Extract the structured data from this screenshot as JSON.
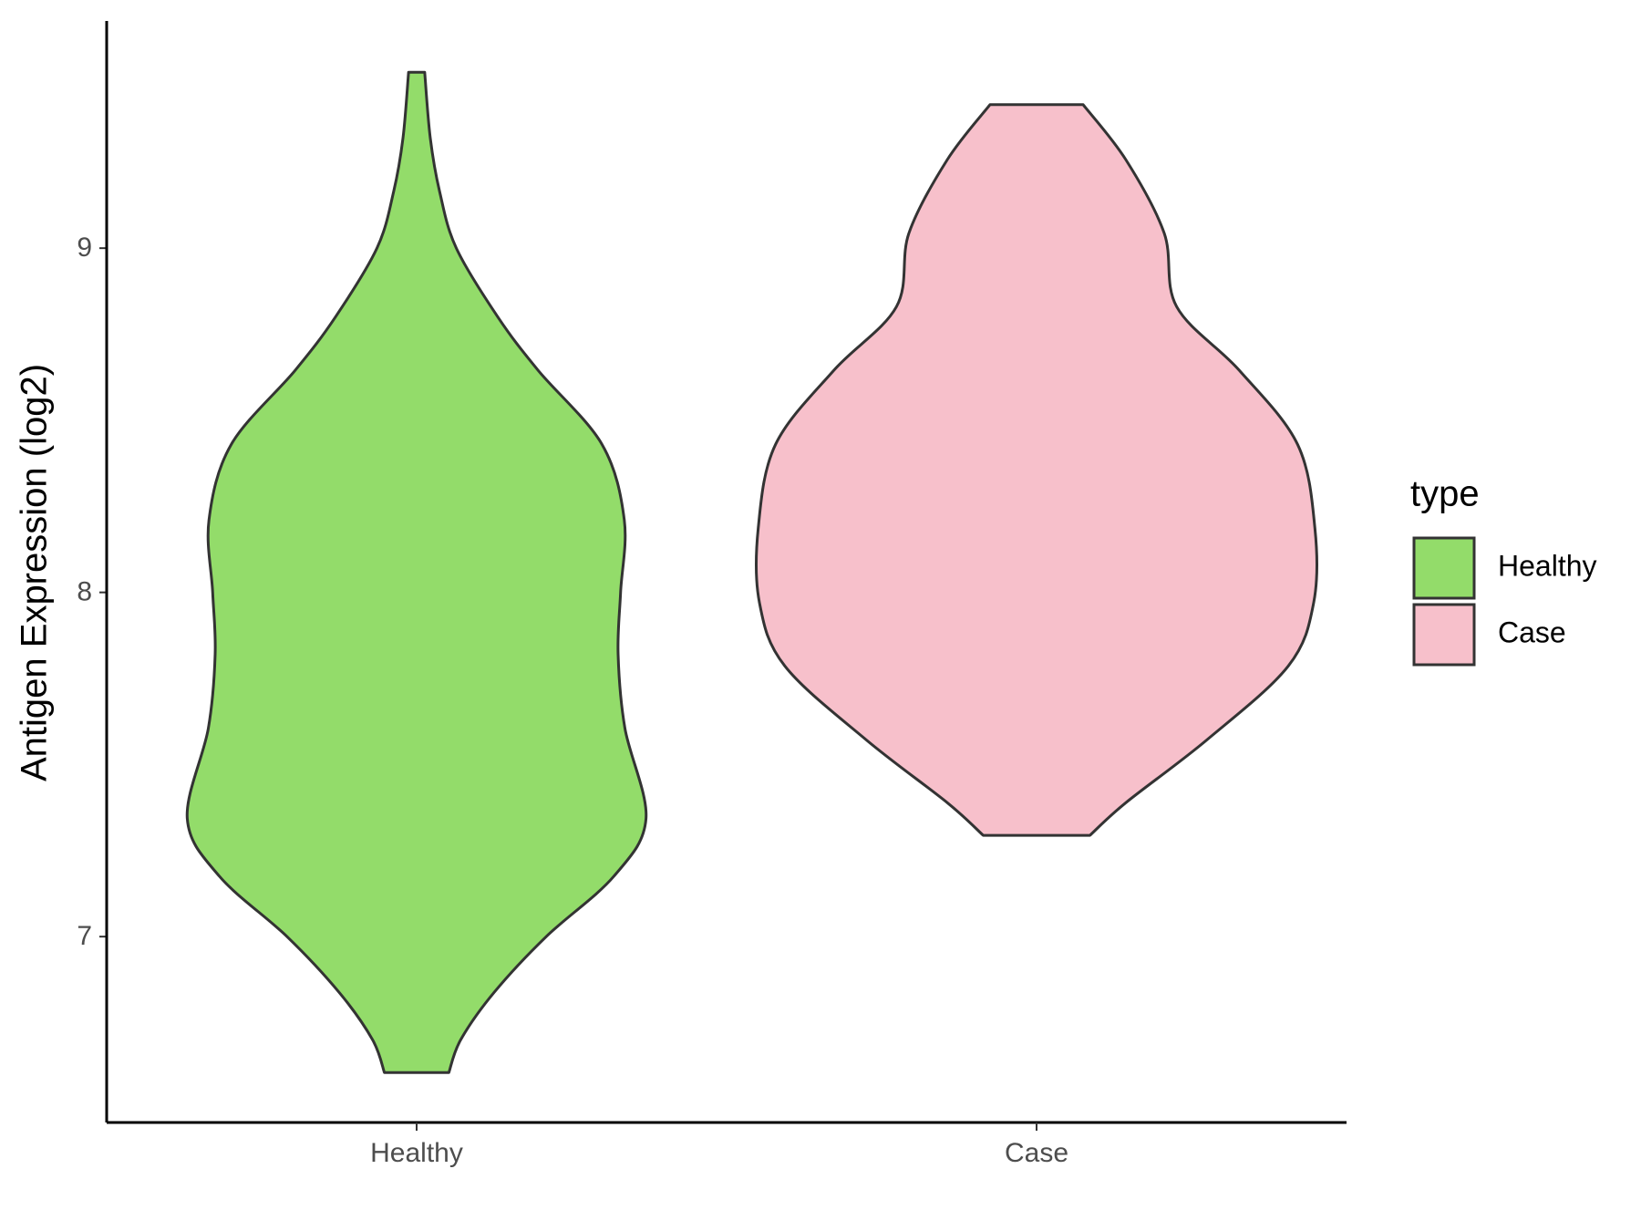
{
  "chart_data": {
    "type": "violin",
    "y_label": "Antigen Expression (log2)",
    "categories": [
      "Healthy",
      "Case"
    ],
    "series": [
      {
        "name": "Healthy",
        "color": "#93dc6a",
        "y": [
          9.511,
          9.32,
          9.165,
          9.0,
          8.8,
          8.645,
          8.43,
          8.21,
          8.0,
          7.82,
          7.605,
          7.343,
          7.175,
          7.0,
          6.838,
          6.7,
          6.605
        ],
        "widths": [
          0.013,
          0.022,
          0.037,
          0.064,
          0.131,
          0.196,
          0.299,
          0.335,
          0.329,
          0.325,
          0.336,
          0.37,
          0.318,
          0.209,
          0.125,
          0.071,
          0.052
        ]
      },
      {
        "name": "Case",
        "color": "#f7c0cb",
        "y": [
          9.417,
          9.257,
          9.043,
          8.83,
          8.645,
          8.43,
          8.186,
          7.97,
          7.786,
          7.572,
          7.389,
          7.294
        ],
        "widths": [
          0.075,
          0.144,
          0.206,
          0.226,
          0.327,
          0.421,
          0.449,
          0.447,
          0.406,
          0.275,
          0.144,
          0.086
        ]
      }
    ],
    "ylim": [
      6.46,
      9.66
    ],
    "yticks": [
      7,
      8,
      9
    ],
    "legend_title": "type",
    "legend_position": "right"
  }
}
